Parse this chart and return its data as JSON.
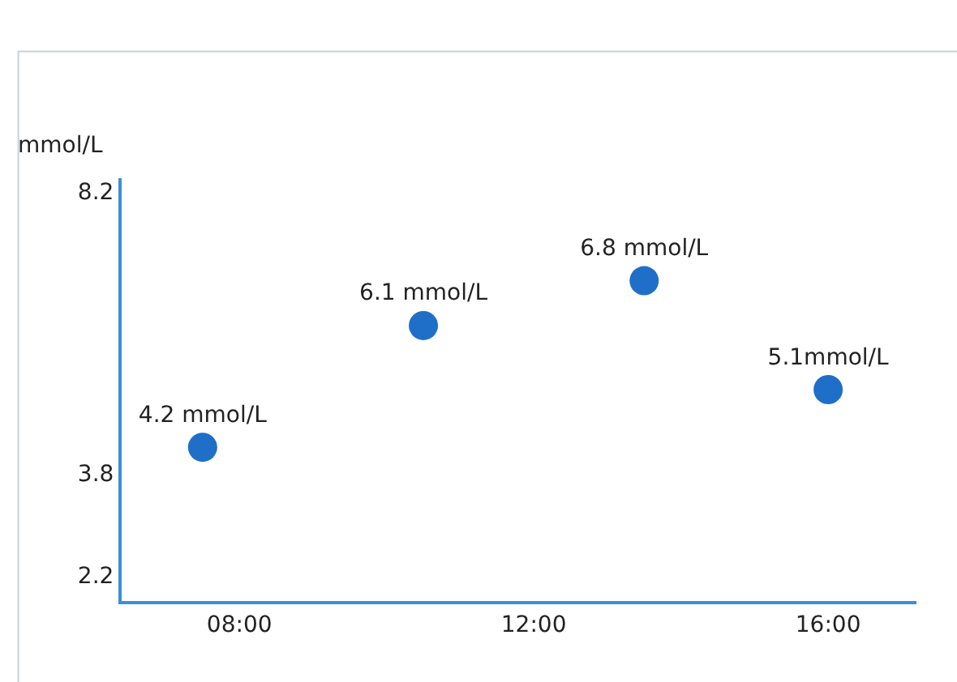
{
  "chart_data": {
    "type": "scatter",
    "ylabel": "mmol/L",
    "x": [
      7.5,
      10.5,
      13.5,
      16
    ],
    "series": [
      {
        "color": "#1f6fc8",
        "values": [
          4.2,
          6.1,
          6.8,
          5.1
        ],
        "value_labels": [
          "4.2 mmol/L",
          "6.1 mmol/L",
          "6.8 mmol/L",
          "5.1mmol/L"
        ]
      }
    ],
    "xlim": [
      6.4,
      17.2
    ],
    "xticks": [
      {
        "value": 8,
        "label": "08:00"
      },
      {
        "value": 12,
        "label": "12:00"
      },
      {
        "value": 16,
        "label": "16:00"
      }
    ],
    "ylim": [
      1.8,
      8.4
    ],
    "yticks": [
      2.2,
      3.8,
      8.2
    ],
    "legend": false,
    "marker": "circle"
  }
}
